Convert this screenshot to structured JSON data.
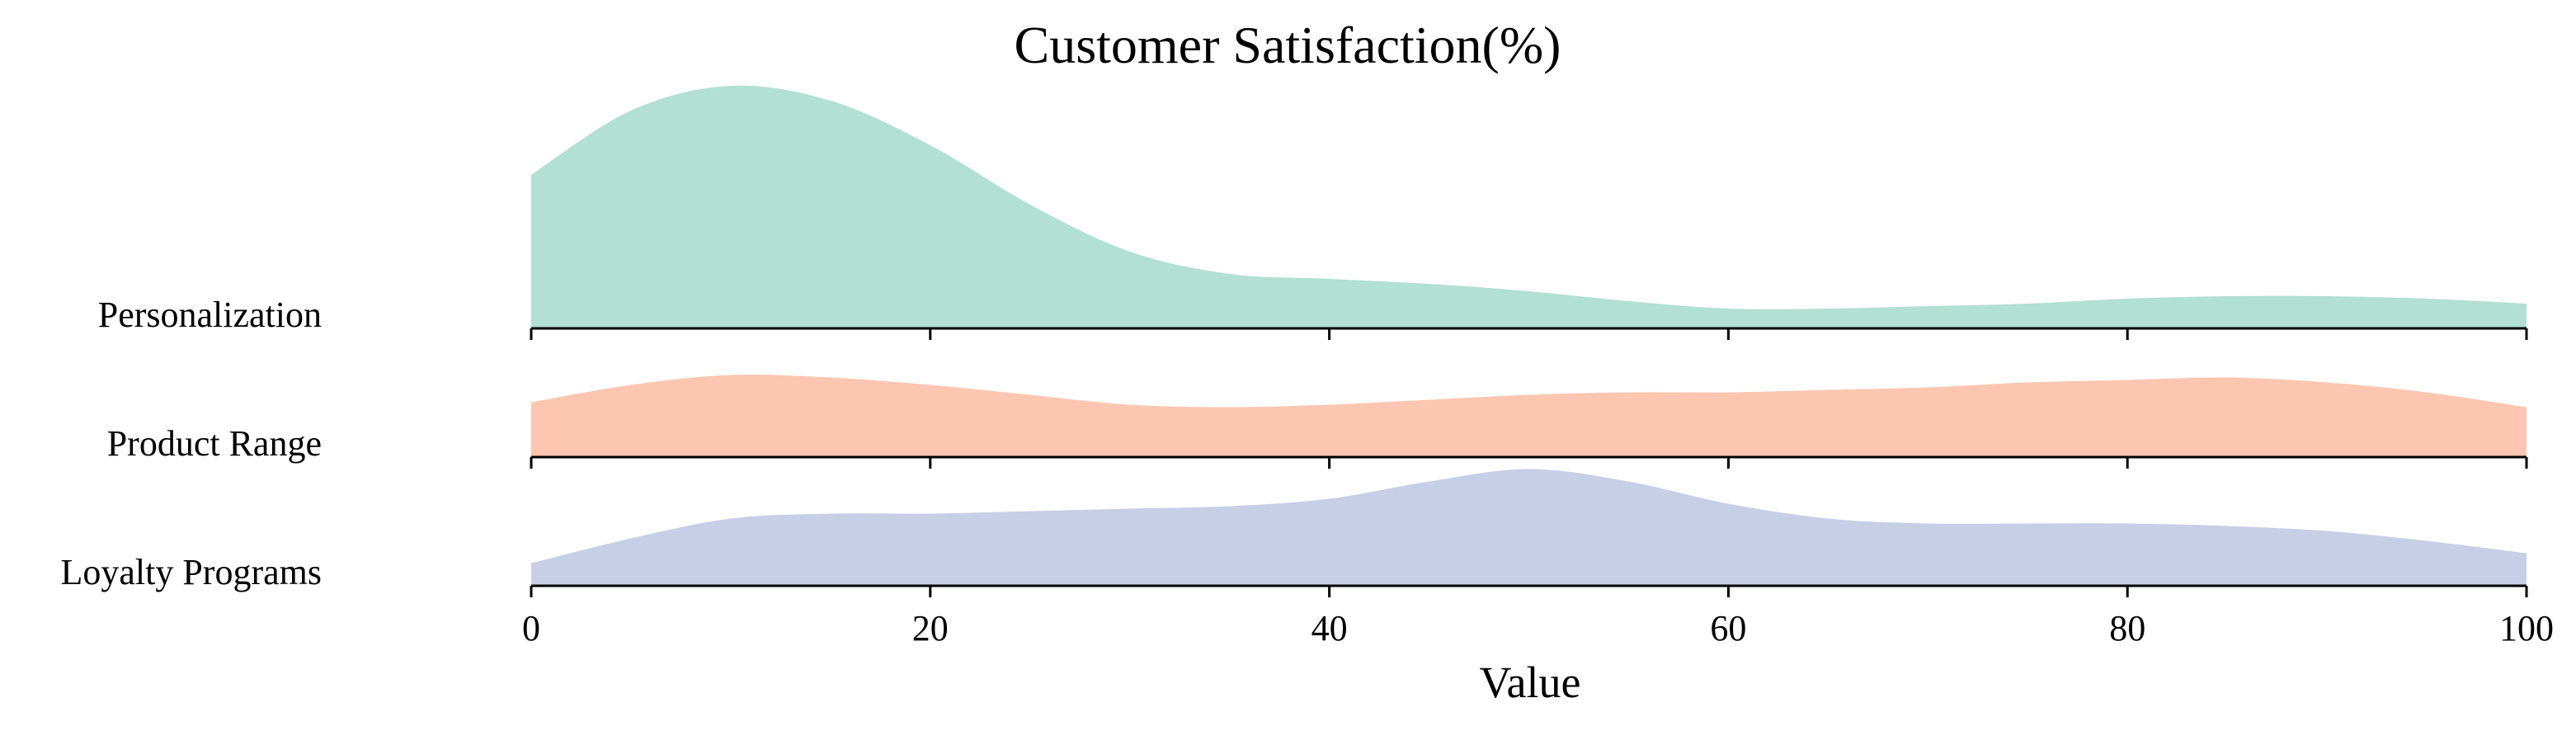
{
  "chart_data": {
    "type": "ridgeline",
    "title": "Customer Satisfaction(%)",
    "xlabel": "Value",
    "xlim": [
      0,
      100
    ],
    "xticks": [
      "0",
      "20",
      "40",
      "60",
      "80",
      "100"
    ],
    "grid": false,
    "series": [
      {
        "name": "Personalization",
        "color": "#66c2a5",
        "x": [
          0,
          5,
          10,
          15,
          20,
          25,
          30,
          35,
          40,
          45,
          50,
          55,
          60,
          65,
          70,
          75,
          80,
          85,
          90,
          95,
          100
        ],
        "density": [
          0.62,
          0.88,
          0.98,
          0.92,
          0.74,
          0.5,
          0.31,
          0.22,
          0.2,
          0.18,
          0.15,
          0.11,
          0.08,
          0.08,
          0.09,
          0.1,
          0.12,
          0.13,
          0.13,
          0.12,
          0.1
        ]
      },
      {
        "name": "Product Range",
        "color": "#fc8d62",
        "x": [
          0,
          5,
          10,
          15,
          20,
          25,
          30,
          35,
          40,
          45,
          50,
          55,
          60,
          65,
          70,
          75,
          80,
          85,
          90,
          95,
          100
        ],
        "density": [
          0.23,
          0.3,
          0.34,
          0.33,
          0.3,
          0.26,
          0.22,
          0.21,
          0.22,
          0.24,
          0.26,
          0.27,
          0.27,
          0.28,
          0.29,
          0.31,
          0.32,
          0.33,
          0.31,
          0.27,
          0.21
        ]
      },
      {
        "name": "Loyalty Programs",
        "color": "#8da0cb",
        "x": [
          0,
          5,
          10,
          15,
          20,
          25,
          30,
          35,
          40,
          45,
          50,
          55,
          60,
          65,
          70,
          75,
          80,
          85,
          90,
          95,
          100
        ],
        "density": [
          0.1,
          0.2,
          0.28,
          0.3,
          0.3,
          0.31,
          0.32,
          0.33,
          0.36,
          0.43,
          0.48,
          0.43,
          0.34,
          0.28,
          0.26,
          0.26,
          0.26,
          0.25,
          0.23,
          0.19,
          0.14
        ]
      }
    ]
  }
}
